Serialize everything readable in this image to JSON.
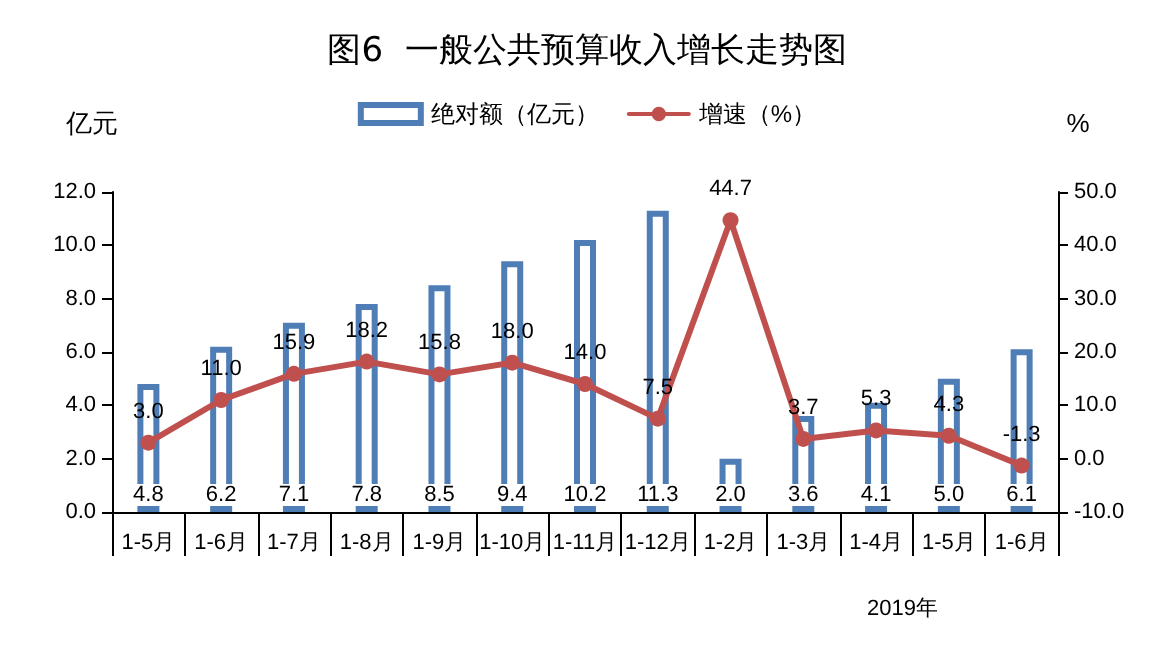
{
  "chart_data": {
    "type": "bar",
    "title": "图6  一般公共预算收入增长走势图",
    "ylabel": "亿元",
    "y2label": "%",
    "categories": [
      "1-5月",
      "1-6月",
      "1-7月",
      "1-8月",
      "1-9月",
      "1-10月",
      "1-11月",
      "1-12月",
      "1-2月",
      "1-3月",
      "1-4月",
      "1-5月",
      "1-6月"
    ],
    "series": [
      {
        "name": "绝对额（亿元）",
        "color": "#4f7db5",
        "values": [
          4.8,
          6.2,
          7.1,
          7.8,
          8.5,
          9.4,
          10.2,
          11.3,
          2.0,
          3.6,
          4.1,
          5.0,
          6.1
        ],
        "value_labels": [
          "4.8",
          "6.2",
          "7.1",
          "7.8",
          "8.5",
          "9.4",
          "10.2",
          "11.3",
          "2.0",
          "3.6",
          "4.1",
          "5.0",
          "6.1"
        ]
      },
      {
        "name": "增速（%）",
        "type": "line",
        "axis": "y2",
        "color": "#c0504d",
        "values": [
          3.0,
          11.0,
          15.9,
          18.2,
          15.8,
          18.0,
          14.0,
          7.5,
          44.7,
          3.7,
          5.3,
          4.3,
          -1.3
        ],
        "value_labels": [
          "3.0",
          "11.0",
          "15.9",
          "18.2",
          "15.8",
          "18.0",
          "14.0",
          "7.5",
          "44.7",
          "3.7",
          "5.3",
          "4.3",
          "-1.3"
        ]
      }
    ],
    "ylim": [
      0,
      12
    ],
    "yticks": [
      {
        "value": 0,
        "label": "0.0"
      },
      {
        "value": 2,
        "label": "2.0"
      },
      {
        "value": 4,
        "label": "4.0"
      },
      {
        "value": 6,
        "label": "6.0"
      },
      {
        "value": 8,
        "label": "8.0"
      },
      {
        "value": 10,
        "label": "10.0"
      },
      {
        "value": 12,
        "label": "12.0"
      }
    ],
    "y2lim": [
      -10,
      50
    ],
    "y2ticks": [
      {
        "value": -10,
        "label": "-10.0"
      },
      {
        "value": 0,
        "label": "0.0"
      },
      {
        "value": 10,
        "label": "10.0"
      },
      {
        "value": 20,
        "label": "20.0"
      },
      {
        "value": 30,
        "label": "30.0"
      },
      {
        "value": 40,
        "label": "40.0"
      },
      {
        "value": 50,
        "label": "50.0"
      }
    ],
    "annotations": [
      "2019年"
    ],
    "grid": false,
    "legend": "top",
    "marker": "circle",
    "line_style": "solid"
  }
}
